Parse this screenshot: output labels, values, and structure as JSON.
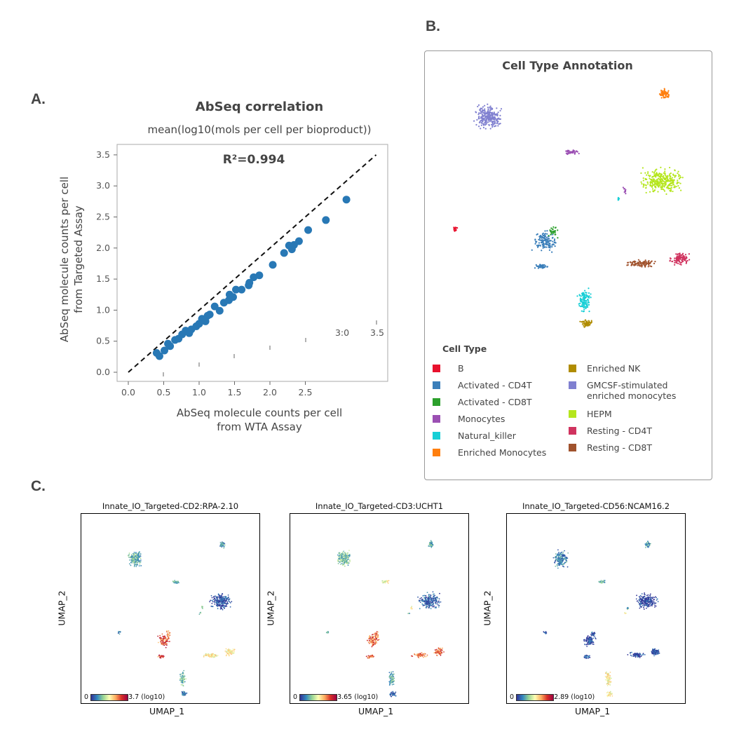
{
  "panel_labels": {
    "a": "A.",
    "b": "B.",
    "c": "C."
  },
  "chart_data": [
    {
      "type": "scatter",
      "title": "AbSeq correlation",
      "subtitle": "mean(log10(mols per cell per bioproduct))",
      "annotation": "R²=0.994",
      "xlabel": [
        "AbSeq molecule counts per cell",
        "from WTA Assay"
      ],
      "ylabel": [
        "AbSeq molecule counts per cell",
        "from Targeted Assay"
      ],
      "xlim": [
        -0.1,
        3.6
      ],
      "ylim": [
        -0.1,
        3.6
      ],
      "x_ticks": [
        "0.0",
        "0.5",
        "1.0",
        "1.5",
        "2.0",
        "2.5"
      ],
      "x_ticks_misplaced": [
        "3:0",
        "3.5"
      ],
      "y_ticks": [
        "0.0",
        "0.5",
        "1.0",
        "1.5",
        "2.0",
        "2.5",
        "3.0",
        "3.5"
      ],
      "identity_line": true,
      "point_color": "#2878b5",
      "points": [
        [
          0.4,
          0.31
        ],
        [
          0.44,
          0.26
        ],
        [
          0.51,
          0.35
        ],
        [
          0.56,
          0.46
        ],
        [
          0.59,
          0.42
        ],
        [
          0.66,
          0.52
        ],
        [
          0.71,
          0.54
        ],
        [
          0.76,
          0.61
        ],
        [
          0.81,
          0.67
        ],
        [
          0.86,
          0.63
        ],
        [
          0.89,
          0.69
        ],
        [
          0.96,
          0.74
        ],
        [
          1.0,
          0.78
        ],
        [
          1.04,
          0.86
        ],
        [
          1.09,
          0.82
        ],
        [
          1.12,
          0.91
        ],
        [
          1.15,
          0.93
        ],
        [
          1.22,
          1.06
        ],
        [
          1.29,
          0.99
        ],
        [
          1.35,
          1.12
        ],
        [
          1.42,
          1.16
        ],
        [
          1.43,
          1.25
        ],
        [
          1.48,
          1.21
        ],
        [
          1.52,
          1.33
        ],
        [
          1.6,
          1.33
        ],
        [
          1.7,
          1.4
        ],
        [
          1.71,
          1.44
        ],
        [
          1.77,
          1.53
        ],
        [
          1.85,
          1.56
        ],
        [
          2.04,
          1.73
        ],
        [
          2.2,
          1.92
        ],
        [
          2.27,
          2.04
        ],
        [
          2.31,
          1.98
        ],
        [
          2.34,
          2.05
        ],
        [
          2.41,
          2.11
        ],
        [
          2.54,
          2.29
        ],
        [
          2.79,
          2.45
        ],
        [
          3.08,
          2.78
        ]
      ]
    },
    {
      "type": "scatter",
      "title": "Cell Type Annotation",
      "legend_title": "Cell Type",
      "legend": [
        {
          "key": "B",
          "label": "B",
          "color": "#e8112d"
        },
        {
          "key": "act4",
          "label": "Activated - CD4T",
          "color": "#3b7fba"
        },
        {
          "key": "act8",
          "label": "Activated - CD8T",
          "color": "#2ca02c"
        },
        {
          "key": "mono",
          "label": "Monocytes",
          "color": "#9b4fb3"
        },
        {
          "key": "nk",
          "label": "Natural_killer",
          "color": "#17cfd6"
        },
        {
          "key": "emono",
          "label": "Enriched Monocytes",
          "color": "#ff7f0e"
        },
        {
          "key": "enk",
          "label": "Enriched NK",
          "color": "#b08c00"
        },
        {
          "key": "gm",
          "label": "GMCSF-stimulated enriched monocytes",
          "color": "#8080d0"
        },
        {
          "key": "hepm",
          "label": "HEPM",
          "color": "#b5e61d"
        },
        {
          "key": "r4",
          "label": "Resting - CD4T",
          "color": "#d0335f"
        },
        {
          "key": "r8",
          "label": "Resting - CD8T",
          "color": "#a0522d"
        }
      ]
    },
    {
      "type": "scatter",
      "title": "Innate_IO_Targeted-CD2:RPA-2.10",
      "xlabel": "UMAP_1",
      "ylabel": "UMAP_2",
      "colorbar": {
        "min": "0",
        "max": "3.7 (log10)"
      },
      "relative_expression": {
        "gm": 0.3,
        "emono": 0.25,
        "mono": 0.35,
        "hepm": 0.08,
        "B": 0.2,
        "act4": 0.85,
        "act8": 0.8,
        "r4": 0.6,
        "r8": 0.6,
        "nk": 0.35,
        "enk": 0.2
      }
    },
    {
      "type": "scatter",
      "title": "Innate_IO_Targeted-CD3:UCHT1",
      "xlabel": "UMAP_1",
      "ylabel": "UMAP_2",
      "colorbar": {
        "min": "0",
        "max": "3.65 (log10)"
      },
      "relative_expression": {
        "gm": 0.35,
        "emono": 0.3,
        "mono": 0.55,
        "hepm": 0.12,
        "B": 0.3,
        "act4": 0.82,
        "act8": 0.8,
        "r4": 0.82,
        "r8": 0.8,
        "nk": 0.3,
        "enk": 0.12
      }
    },
    {
      "type": "scatter",
      "title": "Innate_IO_Targeted-CD56:NCAM16.2",
      "xlabel": "UMAP_1",
      "ylabel": "UMAP_2",
      "colorbar": {
        "min": "0",
        "max": "2.89 (log10)"
      },
      "relative_expression": {
        "gm": 0.2,
        "emono": 0.25,
        "mono": 0.3,
        "hepm": 0.04,
        "B": 0.05,
        "act4": 0.08,
        "act8": 0.1,
        "r4": 0.04,
        "r8": 0.05,
        "nk": 0.6,
        "enk": 0.58
      }
    }
  ]
}
